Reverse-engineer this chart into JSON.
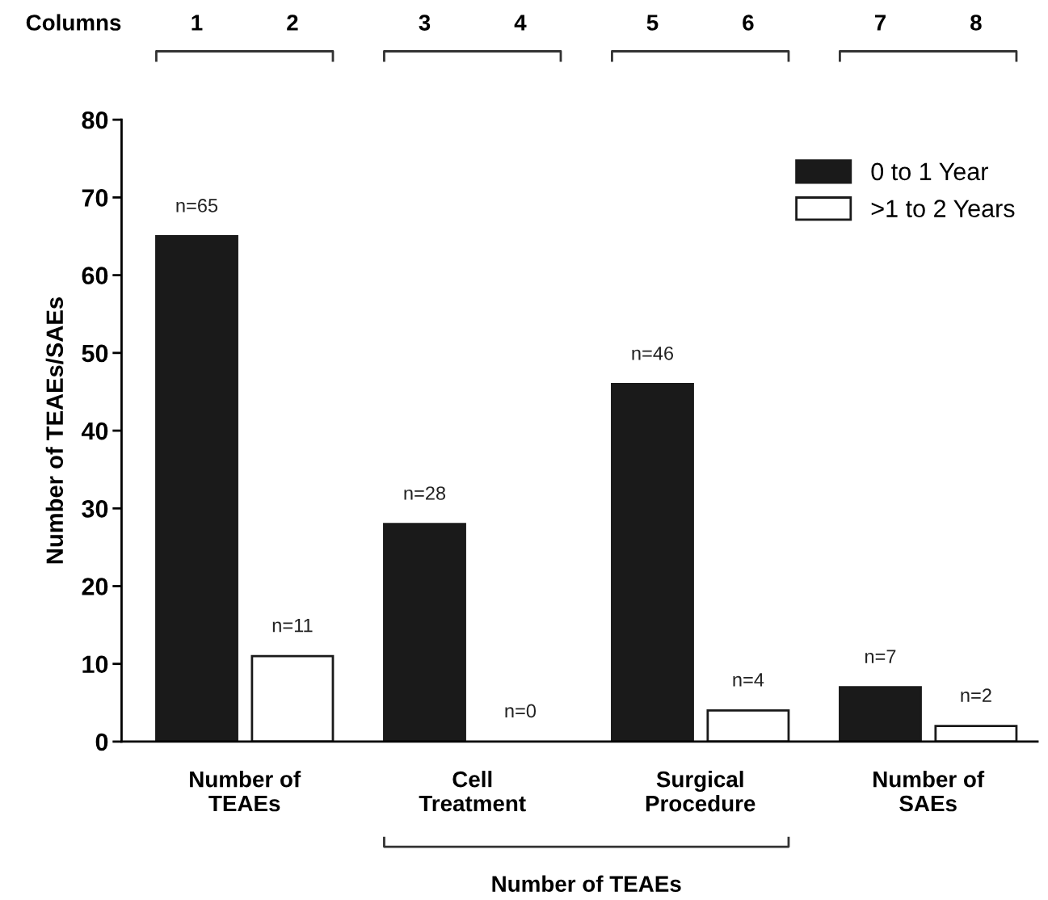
{
  "chart_data": {
    "type": "bar",
    "ylabel": "Number of TEAEs/SAEs",
    "categories": [
      "Number of\nTEAEs",
      "Cell\nTreatment",
      "Surgical\nProcedure",
      "Number of\nSAEs"
    ],
    "series": [
      {
        "name": "0 to 1 Year",
        "color": "#1a1a1a",
        "values": [
          65,
          28,
          46,
          7
        ],
        "value_labels": [
          "n=65",
          "n=28",
          "n=46",
          "n=7"
        ]
      },
      {
        "name": ">1 to 2 Years",
        "color": "#ffffff",
        "values": [
          11,
          0,
          4,
          2
        ],
        "value_labels": [
          "n=11",
          "n=0",
          "n=4",
          "n=2"
        ]
      }
    ],
    "ylim": [
      0,
      80
    ],
    "yticks": [
      0,
      10,
      20,
      30,
      40,
      50,
      60,
      70,
      80
    ],
    "grid": false,
    "legend": "top right",
    "annotations": [
      "Columns",
      "1",
      "2",
      "3",
      "4",
      "5",
      "6",
      "7",
      "8",
      "Number of TEAEs"
    ]
  }
}
